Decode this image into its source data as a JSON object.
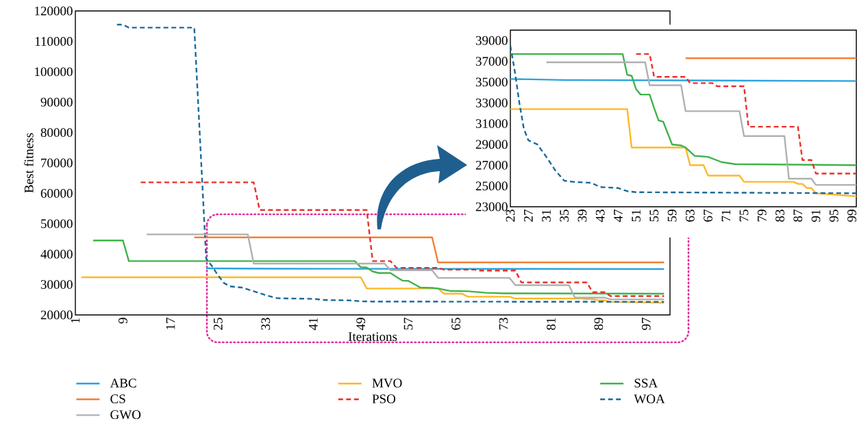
{
  "chart_data": [
    {
      "type": "line",
      "xlabel": "Iterations",
      "ylabel": "Best fitness",
      "xlim": [
        1,
        101
      ],
      "ylim": [
        20000,
        120000
      ],
      "xticks": [
        1,
        9,
        17,
        25,
        33,
        41,
        49,
        57,
        65,
        73,
        81,
        89,
        97
      ],
      "yticks": [
        20000,
        30000,
        40000,
        50000,
        60000,
        70000,
        80000,
        90000,
        100000,
        110000,
        120000
      ],
      "legend": "bottom",
      "marker": "none",
      "series": [
        {
          "name": "ABC",
          "color": "#29a3dd",
          "line_style": "solid",
          "x": [
            23,
            35,
            100
          ],
          "values": [
            35300,
            35200,
            35100
          ]
        },
        {
          "name": "MVO",
          "color": "#fdb827",
          "line_style": "solid",
          "x": [
            2,
            49,
            50,
            62,
            63,
            66,
            67,
            74,
            75,
            86,
            87,
            88,
            89,
            90,
            91,
            100
          ],
          "values": [
            32400,
            32400,
            28700,
            28700,
            27000,
            27000,
            26000,
            26000,
            25400,
            25400,
            25200,
            25200,
            24800,
            24800,
            24300,
            24000
          ]
        },
        {
          "name": "SSA",
          "color": "#3fb34a",
          "line_style": "solid",
          "x": [
            4,
            9,
            10,
            48,
            49,
            50,
            51,
            52,
            54,
            55,
            56,
            57,
            59,
            61,
            62,
            64,
            67,
            70,
            73,
            100
          ],
          "values": [
            44500,
            44500,
            37700,
            37700,
            35700,
            35600,
            34300,
            33800,
            33800,
            32500,
            31300,
            31200,
            29000,
            28900,
            28700,
            27900,
            27800,
            27300,
            27100,
            27000
          ]
        },
        {
          "name": "CS",
          "color": "#f28033",
          "line_style": "solid",
          "x": [
            21,
            61,
            62,
            100
          ],
          "values": [
            45500,
            45500,
            37300,
            37300
          ]
        },
        {
          "name": "PSO",
          "color": "#e8302a",
          "line_style": "dashed",
          "x": [
            12,
            31,
            32,
            50,
            51,
            54,
            55,
            62,
            63,
            68,
            69,
            75,
            76,
            87,
            88,
            90,
            91,
            100
          ],
          "values": [
            63600,
            63600,
            54500,
            54500,
            37700,
            37700,
            35500,
            35500,
            34900,
            34900,
            34600,
            34600,
            30700,
            30700,
            27500,
            27500,
            26200,
            26200
          ]
        },
        {
          "name": "WOA",
          "color": "#1a6a9a",
          "line_style": "dashed",
          "x": [
            8,
            9,
            10,
            21,
            23,
            24,
            25,
            26,
            27,
            29,
            31,
            33,
            35,
            37,
            41,
            43,
            47,
            49,
            51,
            100
          ],
          "values": [
            115500,
            115500,
            114500,
            114500,
            38500,
            36000,
            33000,
            30500,
            29400,
            29000,
            27800,
            26500,
            25500,
            25400,
            25300,
            24900,
            24800,
            24500,
            24400,
            24300
          ]
        },
        {
          "name": "GWO",
          "color": "#b0b0b0",
          "line_style": "solid",
          "x": [
            13,
            30,
            31,
            53,
            54,
            61,
            62,
            74,
            75,
            84,
            85,
            90,
            91,
            100
          ],
          "values": [
            46500,
            46500,
            36900,
            36900,
            34700,
            34700,
            32200,
            32200,
            29800,
            29800,
            25700,
            25700,
            25100,
            25100
          ]
        }
      ]
    },
    {
      "type": "line",
      "xlim": [
        23,
        100
      ],
      "ylim": [
        23000,
        40000
      ],
      "xticks": [
        23,
        27,
        31,
        35,
        39,
        43,
        47,
        51,
        55,
        59,
        63,
        67,
        71,
        75,
        79,
        83,
        87,
        91,
        95,
        99
      ],
      "yticks": [
        23000,
        25000,
        27000,
        29000,
        31000,
        33000,
        35000,
        37000,
        39000
      ],
      "marker": "none",
      "series": [
        {
          "color": "#29a3dd",
          "line_style": "solid",
          "x": [
            23,
            35,
            100
          ],
          "values": [
            35300,
            35200,
            35100
          ]
        },
        {
          "color": "#fdb827",
          "line_style": "solid",
          "x": [
            23,
            49,
            50,
            62,
            63,
            66,
            67,
            74,
            75,
            86,
            87,
            88,
            89,
            90,
            91,
            100
          ],
          "values": [
            32400,
            32400,
            28700,
            28700,
            27000,
            27000,
            26000,
            26000,
            25400,
            25400,
            25200,
            25200,
            24800,
            24800,
            24300,
            24000
          ]
        },
        {
          "color": "#3fb34a",
          "line_style": "solid",
          "x": [
            23,
            48,
            49,
            50,
            51,
            52,
            54,
            55,
            56,
            57,
            59,
            61,
            62,
            64,
            67,
            70,
            73,
            100
          ],
          "values": [
            37700,
            37700,
            35700,
            35600,
            34300,
            33800,
            33800,
            32500,
            31300,
            31200,
            29000,
            28900,
            28700,
            27900,
            27800,
            27300,
            27100,
            27000
          ]
        },
        {
          "color": "#f28033",
          "line_style": "solid",
          "x": [
            62,
            100
          ],
          "values": [
            37300,
            37300
          ]
        },
        {
          "color": "#e8302a",
          "line_style": "dashed",
          "x": [
            51,
            54,
            55,
            62,
            63,
            68,
            69,
            75,
            76,
            87,
            88,
            90,
            91,
            100
          ],
          "values": [
            37700,
            37700,
            35500,
            35500,
            34900,
            34900,
            34600,
            34600,
            30700,
            30700,
            27500,
            27500,
            26200,
            26200
          ]
        },
        {
          "color": "#1a6a9a",
          "line_style": "dashed",
          "x": [
            23,
            24,
            25,
            26,
            27,
            29,
            31,
            33,
            35,
            37,
            41,
            43,
            47,
            49,
            51,
            100
          ],
          "values": [
            38500,
            36000,
            33000,
            30500,
            29400,
            29000,
            27800,
            26500,
            25500,
            25400,
            25300,
            24900,
            24800,
            24500,
            24400,
            24300
          ]
        },
        {
          "color": "#b0b0b0",
          "line_style": "solid",
          "x": [
            31,
            53,
            54,
            61,
            62,
            74,
            75,
            84,
            85,
            90,
            91,
            100
          ],
          "values": [
            36900,
            36900,
            34700,
            34700,
            32200,
            32200,
            29800,
            29800,
            25700,
            25700,
            25100,
            25100
          ]
        }
      ]
    }
  ]
}
